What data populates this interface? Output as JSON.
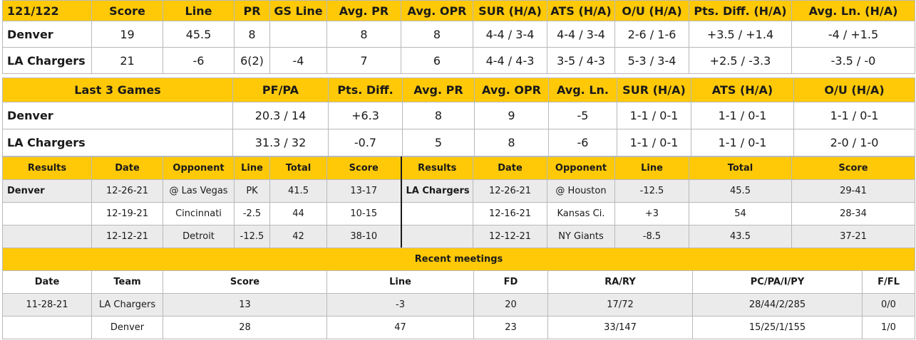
{
  "matchup": {
    "headers": [
      "121/122",
      "Score",
      "Line",
      "PR",
      "GS Line",
      "Avg. PR",
      "Avg. OPR",
      "SUR (H/A)",
      "ATS (H/A)",
      "O/U (H/A)",
      "Pts. Diff. (H/A)",
      "Avg. Ln. (H/A)"
    ],
    "rows": [
      [
        "Denver",
        "19",
        "45.5",
        "8",
        "",
        "8",
        "8",
        "4-4 / 3-4",
        "4-4 / 3-4",
        "2-6 / 1-6",
        "+3.5 / +1.4",
        "-4 / +1.5"
      ],
      [
        "LA Chargers",
        "21",
        "-6",
        "6(2)",
        "-4",
        "7",
        "6",
        "4-4 / 4-3",
        "3-5 / 4-3",
        "5-3 / 3-4",
        "+2.5 / -3.3",
        "-3.5 / -0"
      ]
    ]
  },
  "last3": {
    "headers": [
      "Last 3 Games",
      "PF/PA",
      "Pts. Diff.",
      "Avg. PR",
      "Avg. OPR",
      "Avg. Ln.",
      "SUR (H/A)",
      "ATS (H/A)",
      "O/U (H/A)"
    ],
    "rows": [
      [
        "Denver",
        "20.3 / 14",
        "+6.3",
        "8",
        "9",
        "-5",
        "1-1 / 0-1",
        "1-1 / 0-1",
        "1-1 / 0-1"
      ],
      [
        "LA Chargers",
        "31.3 / 32",
        "-0.7",
        "5",
        "8",
        "-6",
        "1-1 / 0-1",
        "1-1 / 0-1",
        "2-0 / 1-0"
      ]
    ]
  },
  "results": {
    "headers": [
      "Results",
      "Date",
      "Opponent",
      "Line",
      "Total",
      "Score",
      "Results",
      "Date",
      "Opponent",
      "Line",
      "Total",
      "Score"
    ],
    "rows": [
      [
        "Denver",
        "12-26-21",
        "@ Las Vegas",
        "PK",
        "41.5",
        "13-17",
        "LA Chargers",
        "12-26-21",
        "@ Houston",
        "-12.5",
        "45.5",
        "29-41"
      ],
      [
        "",
        "12-19-21",
        "Cincinnati",
        "-2.5",
        "44",
        "10-15",
        "",
        "12-16-21",
        "Kansas Ci.",
        "+3",
        "54",
        "28-34"
      ],
      [
        "",
        "12-12-21",
        "Detroit",
        "-12.5",
        "42",
        "38-10",
        "",
        "12-12-21",
        "NY Giants",
        "-8.5",
        "43.5",
        "37-21"
      ]
    ]
  },
  "meetings": {
    "title": "Recent meetings",
    "headers": [
      "Date",
      "Team",
      "Score",
      "Line",
      "FD",
      "RA/RY",
      "PC/PA/I/PY",
      "F/FL"
    ],
    "rows": [
      [
        "11-28-21",
        "LA Chargers",
        "13",
        "-3",
        "20",
        "17/72",
        "28/44/2/285",
        "0/0"
      ],
      [
        "",
        "Denver",
        "28",
        "47",
        "23",
        "33/147",
        "15/25/1/155",
        "1/0"
      ]
    ]
  },
  "colors": {
    "header_bg": "#ffc907",
    "shade_bg": "#ebebeb",
    "border": "#b9b9b9"
  }
}
